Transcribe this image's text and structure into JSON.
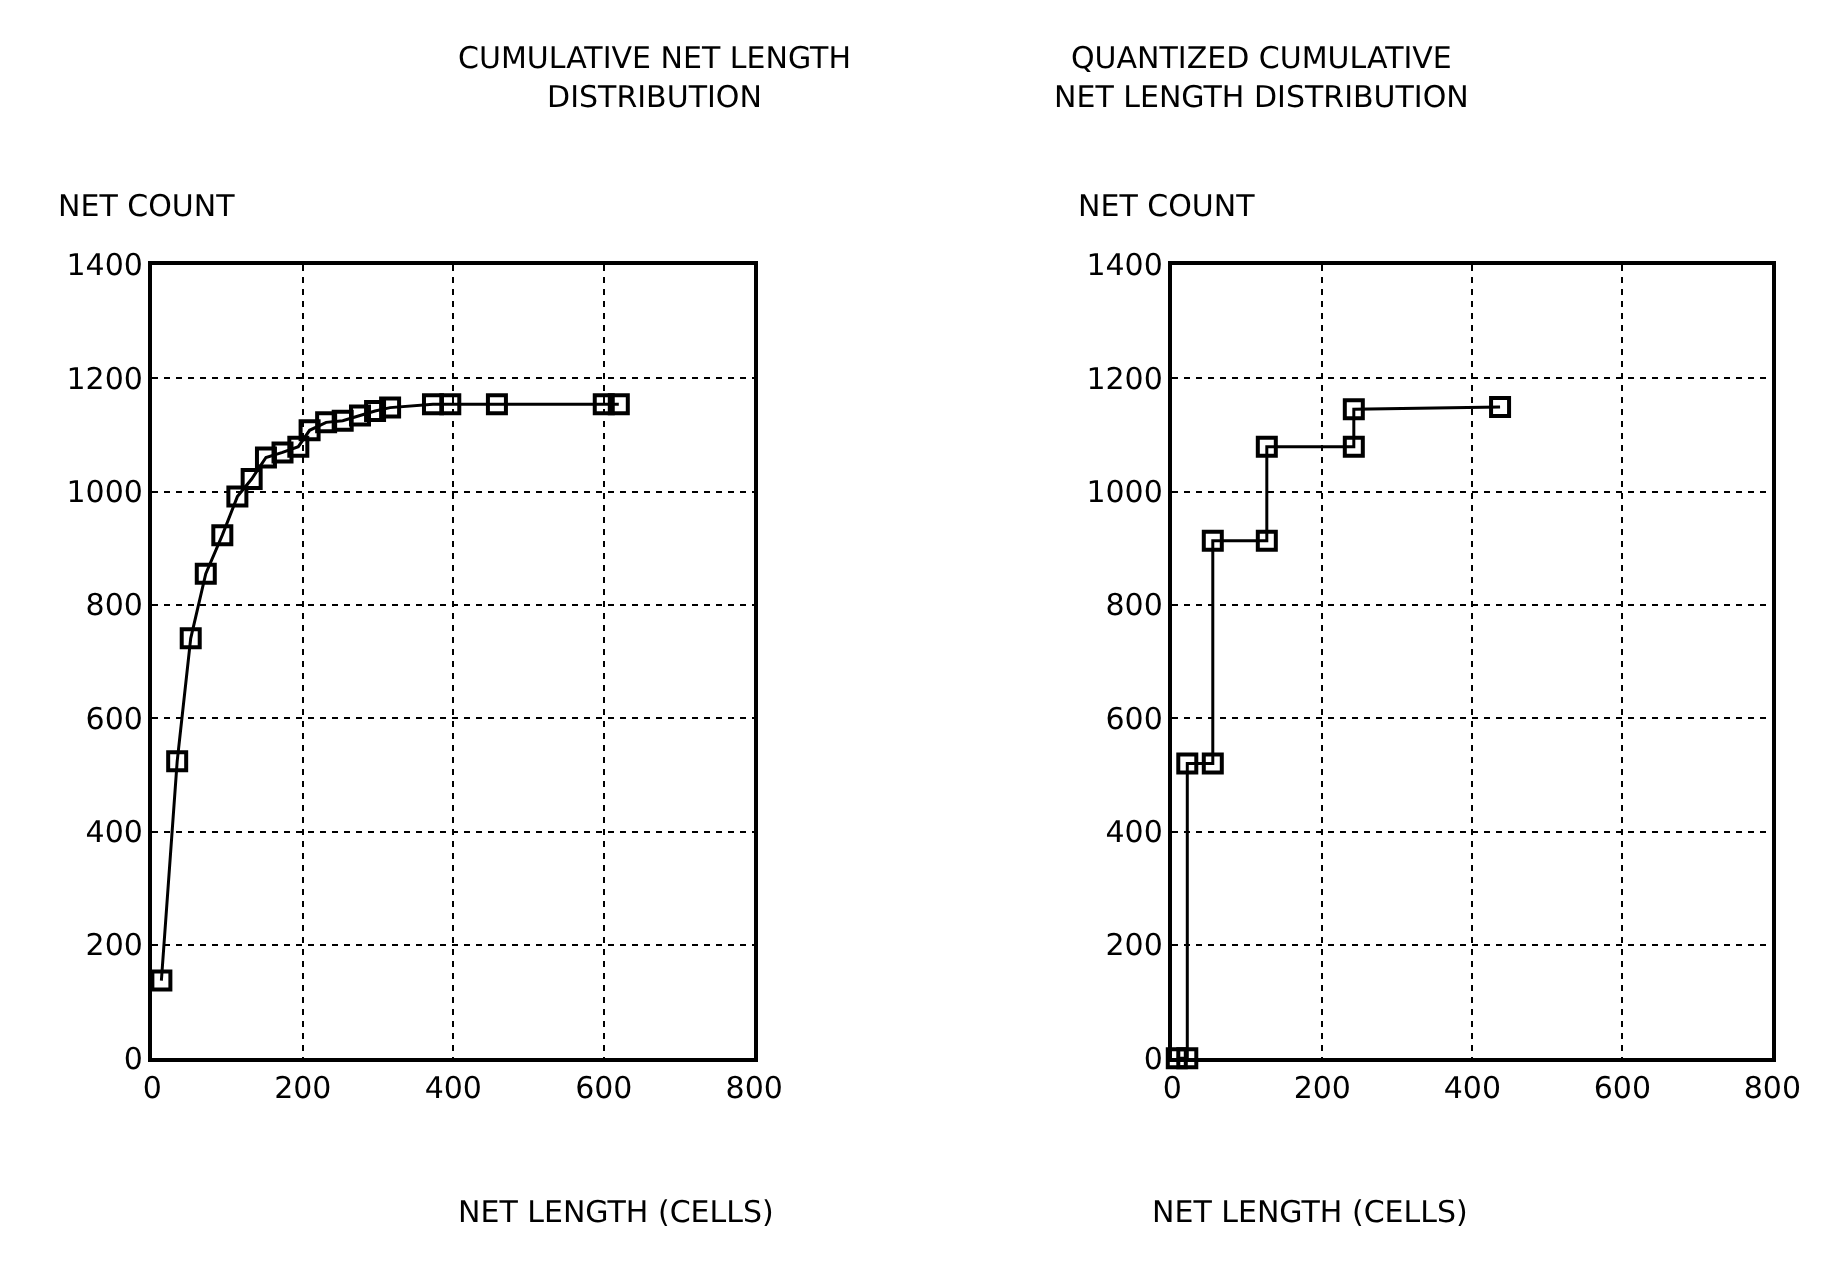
{
  "chart_data": [
    {
      "type": "line",
      "title": "CUMULATIVE NET LENGTH\nDISTRIBUTION",
      "xlabel": "NET LENGTH (CELLS)",
      "ylabel": "NET COUNT",
      "xlim": [
        0,
        800
      ],
      "xticks": [
        0,
        200,
        400,
        600,
        800
      ],
      "ylim": [
        0,
        1400
      ],
      "yticks": [
        0,
        200,
        400,
        600,
        800,
        1000,
        1200,
        1400
      ],
      "grid": true,
      "marker": "square",
      "line_style": "solid",
      "series": [
        {
          "color": "#000000",
          "x": [
            12,
            33,
            51,
            71,
            93,
            113,
            132,
            151,
            173,
            194,
            209,
            231,
            253,
            276,
            296,
            316,
            373,
            396,
            458,
            600,
            620
          ],
          "values": [
            137,
            524,
            741,
            855,
            923,
            991,
            1022,
            1060,
            1069,
            1079,
            1108,
            1122,
            1125,
            1134,
            1142,
            1148,
            1154,
            1154,
            1154,
            1154,
            1154
          ]
        }
      ]
    },
    {
      "type": "line",
      "title": "QUANTIZED CUMULATIVE\nNET LENGTH DISTRIBUTION",
      "xlabel": "NET LENGTH (CELLS)",
      "ylabel": "NET COUNT",
      "xlim": [
        0,
        800
      ],
      "xticks": [
        0,
        200,
        400,
        600,
        800
      ],
      "ylim": [
        0,
        1400
      ],
      "yticks": [
        0,
        200,
        400,
        600,
        800,
        1000,
        1200,
        1400
      ],
      "grid": true,
      "marker": "square",
      "line_style": "solid",
      "series": [
        {
          "color": "#000000",
          "x": [
            6,
            20,
            20,
            54,
            54,
            126,
            126,
            242,
            242,
            437
          ],
          "values": [
            0,
            0,
            520,
            520,
            913,
            913,
            1079,
            1079,
            1145,
            1149
          ]
        }
      ]
    }
  ]
}
